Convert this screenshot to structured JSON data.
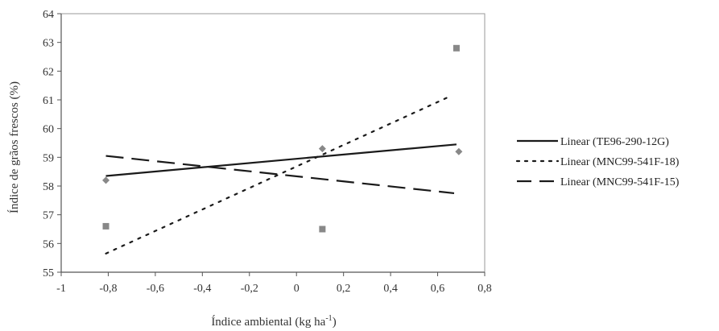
{
  "chart_data": {
    "type": "scatter",
    "title": "",
    "xlabel_main": "Índice ambiental (kg ha",
    "xlabel_sup": "-1",
    "xlabel_end": ")",
    "ylabel": "Índice de grãos frescos (%)",
    "xlim": [
      -1,
      0.8
    ],
    "ylim": [
      55,
      64
    ],
    "x_ticks": [
      "-1",
      "-0,8",
      "-0,6",
      "-0,4",
      "-0,2",
      "0",
      "0,2",
      "0,4",
      "0,6",
      "0,8"
    ],
    "y_ticks": [
      "55",
      "56",
      "57",
      "58",
      "59",
      "60",
      "61",
      "62",
      "63",
      "64"
    ],
    "grid": false,
    "legend_position": "right",
    "series": [
      {
        "name": "Linear (TE96-290-12G)",
        "style": "solid",
        "color": "#1a1a1a",
        "marker": "diamond",
        "x": [
          -0.81,
          0.11,
          0.69
        ],
        "y": [
          58.2,
          59.3,
          59.2
        ],
        "fit": {
          "x": [
            -0.81,
            0.68
          ],
          "y": [
            58.35,
            59.45
          ]
        }
      },
      {
        "name": "Linear (MNC99-541F-18)",
        "style": "dotted",
        "color": "#1a1a1a",
        "marker": "square",
        "x": [
          -0.81,
          0.11,
          0.68
        ],
        "y": [
          56.6,
          56.5,
          62.8
        ],
        "fit": {
          "x": [
            -0.81,
            0.66
          ],
          "y": [
            55.65,
            61.15
          ]
        }
      },
      {
        "name": "Linear (MNC99-541F-15)",
        "style": "dashed",
        "color": "#1a1a1a",
        "marker": "none",
        "x": [],
        "y": [],
        "fit": {
          "x": [
            -0.81,
            0.67
          ],
          "y": [
            59.05,
            57.75
          ]
        }
      }
    ],
    "marker_color": "#888888"
  }
}
